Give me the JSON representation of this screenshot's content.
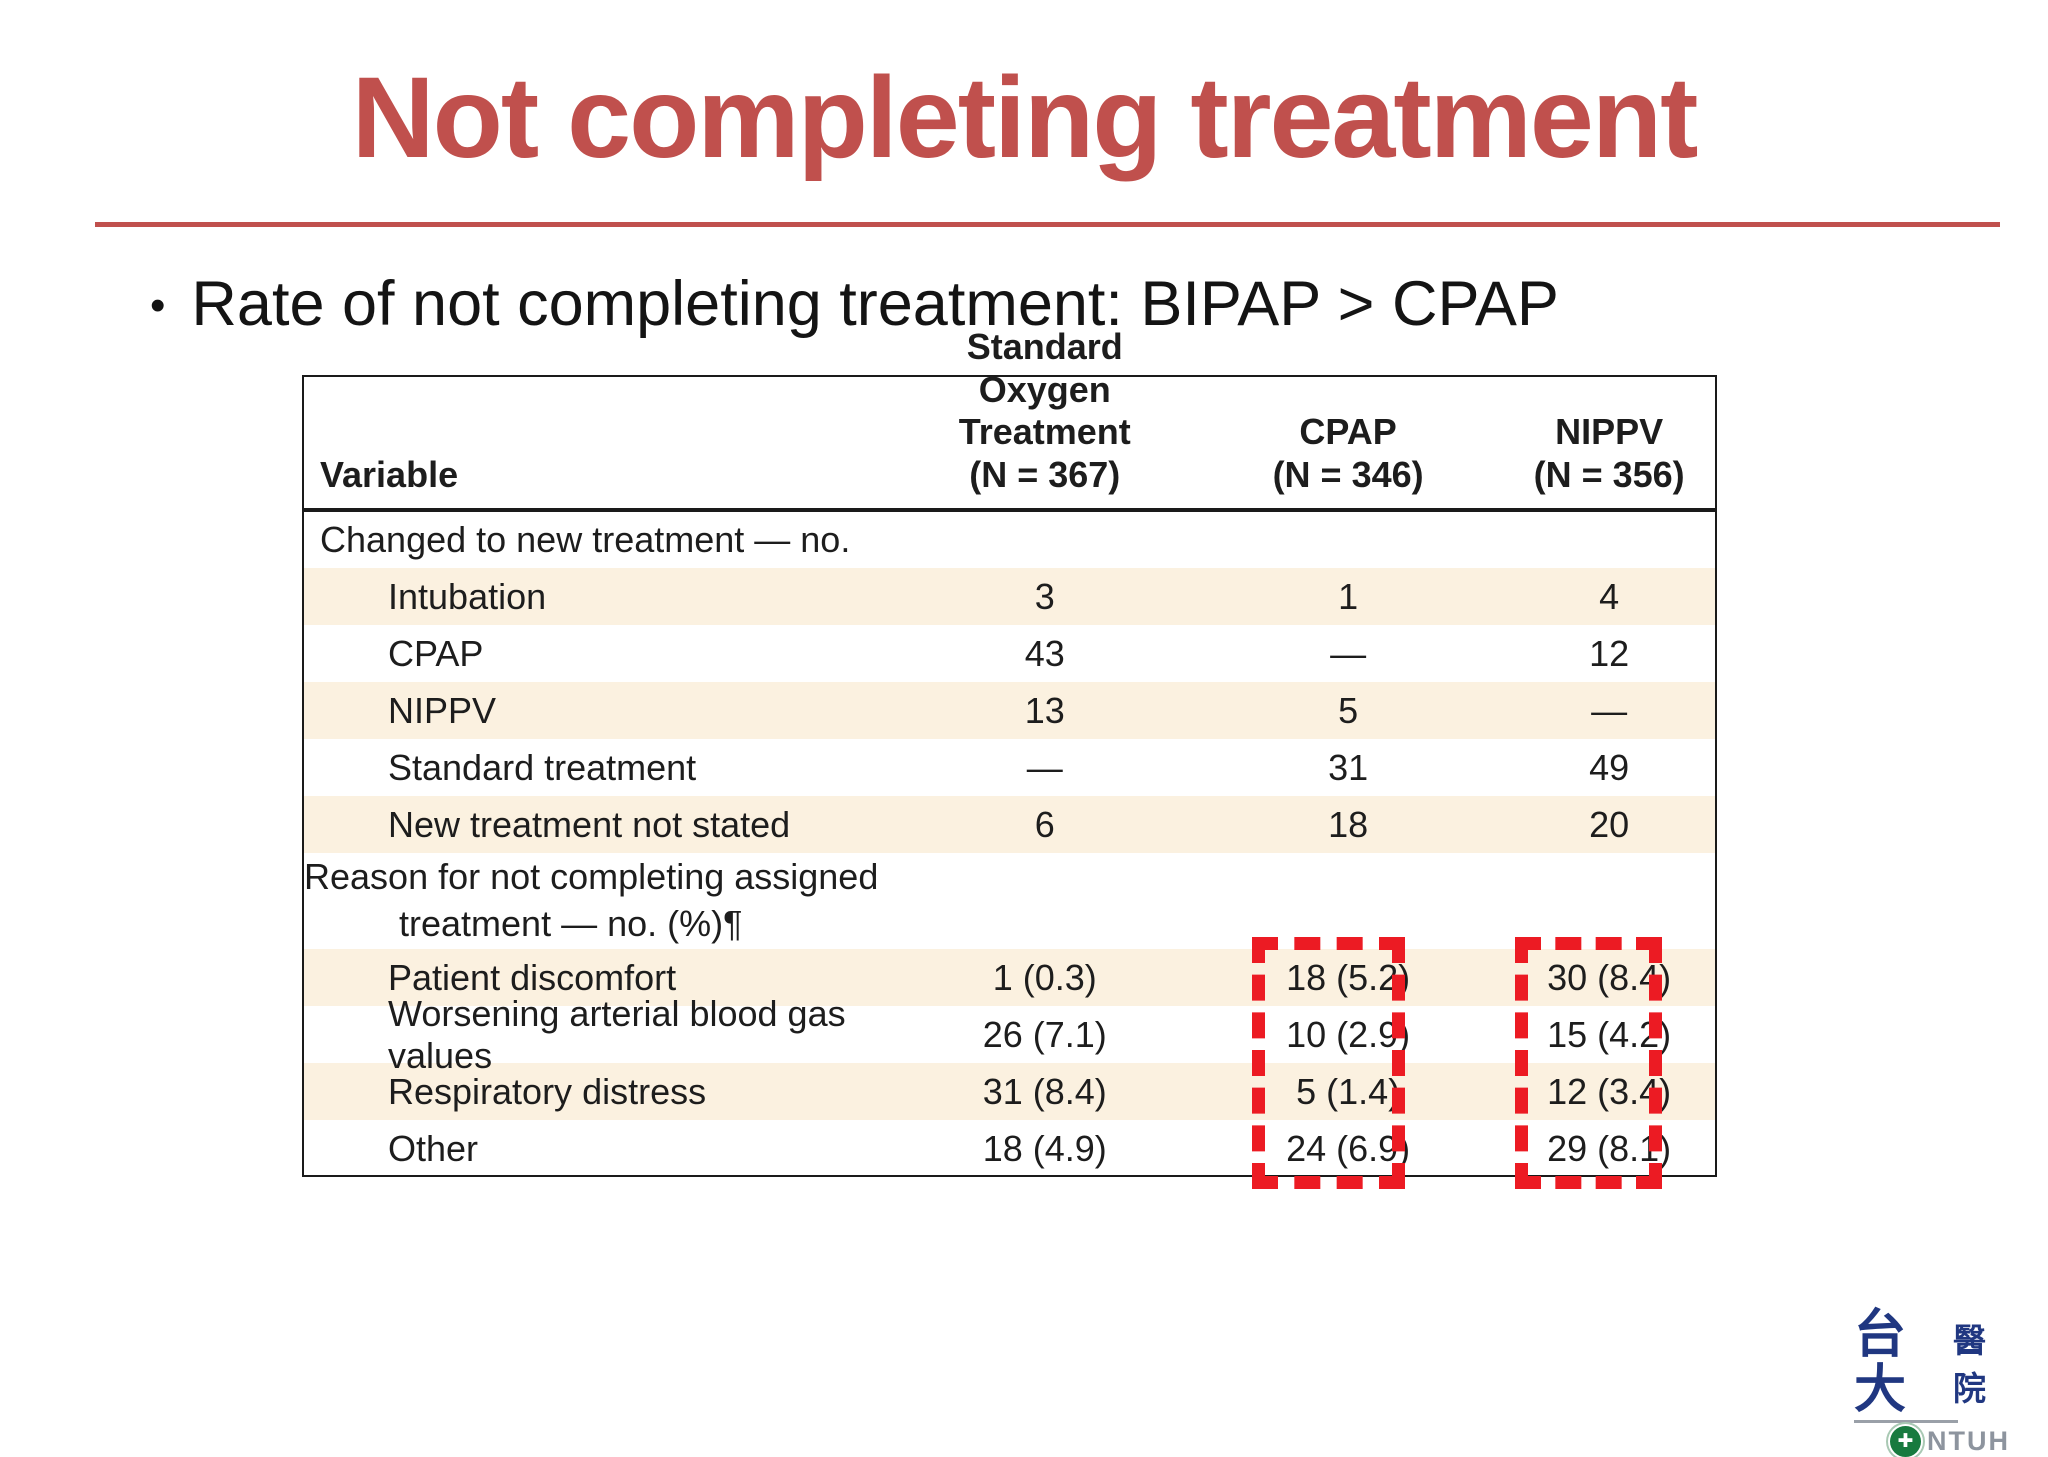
{
  "slide": {
    "title": "Not completing treatment",
    "bullet_marker": "•",
    "bullet_text": "Rate of not completing treatment: BIPAP > CPAP"
  },
  "table": {
    "header": {
      "variable": "Variable",
      "col1": "Standard Oxygen\nTreatment\n(N = 367)",
      "col2": "CPAP\n(N = 346)",
      "col3": "NIPPV\n(N = 356)"
    },
    "rows": [
      {
        "type": "section",
        "label": "Changed to new treatment — no."
      },
      {
        "type": "data",
        "shaded": true,
        "label": "Intubation",
        "values": [
          "3",
          "1",
          "4"
        ]
      },
      {
        "type": "data",
        "shaded": false,
        "label": "CPAP",
        "values": [
          "43",
          "—",
          "12"
        ]
      },
      {
        "type": "data",
        "shaded": true,
        "label": "NIPPV",
        "values": [
          "13",
          "5",
          "—"
        ]
      },
      {
        "type": "data",
        "shaded": false,
        "label": "Standard treatment",
        "values": [
          "—",
          "31",
          "49"
        ]
      },
      {
        "type": "data",
        "shaded": true,
        "label": "New treatment not stated",
        "values": [
          "6",
          "18",
          "20"
        ]
      },
      {
        "type": "section",
        "label": "Reason for not completing assigned",
        "label2": "treatment — no. (%)¶"
      },
      {
        "type": "data",
        "shaded": true,
        "label": "Patient discomfort",
        "values": [
          "1 (0.3)",
          "18 (5.2)",
          "30 (8.4)"
        ]
      },
      {
        "type": "data",
        "shaded": false,
        "label": "Worsening arterial blood gas values",
        "values": [
          "26 (7.1)",
          "10 (2.9)",
          "15 (4.2)"
        ]
      },
      {
        "type": "data",
        "shaded": true,
        "label": "Respiratory distress",
        "values": [
          "31 (8.4)",
          "5 (1.4)",
          "12 (3.4)"
        ]
      },
      {
        "type": "data",
        "shaded": false,
        "label": "Other",
        "values": [
          "18 (4.9)",
          "24 (6.9)",
          "29 (8.1)"
        ]
      }
    ],
    "highlighted_columns": [
      "CPAP",
      "NIPPV"
    ]
  },
  "logo": {
    "zh_main": "台大",
    "zh_sub": "醫院",
    "abbr": "NTUH",
    "cross": "✚"
  },
  "colors": {
    "title_red": "#C0504D",
    "divider_red": "#C0504D",
    "highlight_red": "#EC1B23",
    "row_shade": "#FBF1E0",
    "logo_navy": "#203781",
    "logo_green": "#187A3F",
    "logo_gray": "#8D949E"
  }
}
